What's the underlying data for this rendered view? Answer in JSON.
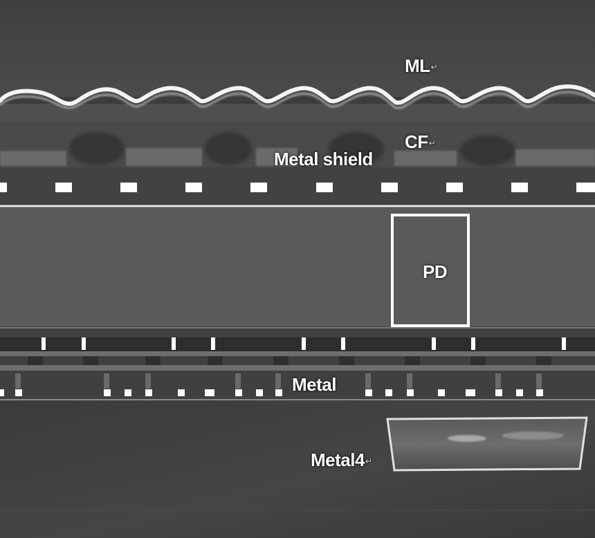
{
  "image": {
    "labels": {
      "ml": "ML",
      "cf": "CF",
      "metal_shield": "Metal shield",
      "pd": "PD",
      "metal": "Metal",
      "metal4": "Metal4"
    },
    "return_mark": "↵",
    "colors": {
      "background": "#3c3c3c",
      "label_text": "#ffffff",
      "pd_box": "#ffffff"
    }
  }
}
